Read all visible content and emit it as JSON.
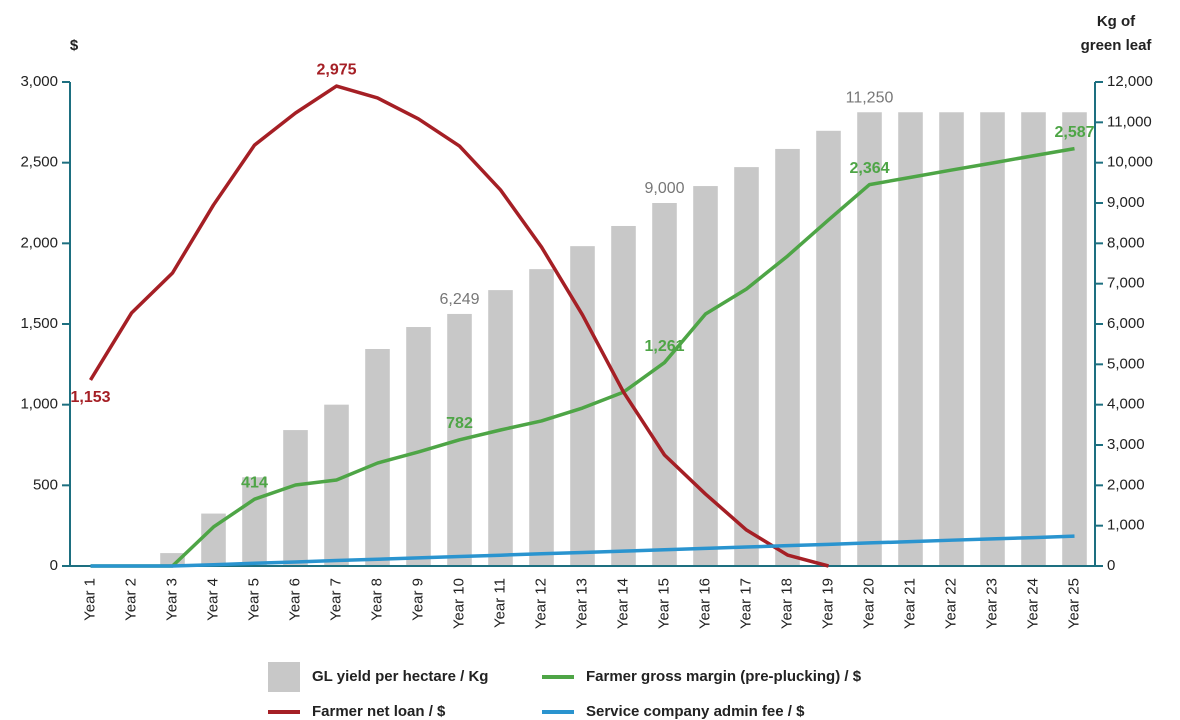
{
  "chart_data": {
    "type": "bar-line",
    "y_label": "$",
    "y2_label": [
      "Kg of",
      "green leaf"
    ],
    "categories": [
      "Year 1",
      "Year 2",
      "Year 3",
      "Year 4",
      "Year 5",
      "Year 6",
      "Year 7",
      "Year 8",
      "Year 9",
      "Year 10",
      "Year 11",
      "Year 12",
      "Year 13",
      "Year 14",
      "Year 15",
      "Year 16",
      "Year 17",
      "Year 18",
      "Year 19",
      "Year 20",
      "Year 21",
      "Year 22",
      "Year 23",
      "Year 24",
      "Year 25"
    ],
    "ylim": [
      0,
      3000
    ],
    "yticks": [
      0,
      500,
      {
        "value": 1000,
        "label": "1,000"
      },
      {
        "value": 1500,
        "label": "1,500"
      },
      {
        "value": 2000,
        "label": "2,000"
      },
      {
        "value": 2500,
        "label": "2,500"
      },
      {
        "value": 3000,
        "label": "3,000"
      }
    ],
    "y2lim": [
      0,
      12000
    ],
    "y2ticks": [
      0,
      {
        "value": 1000,
        "label": "1,000"
      },
      {
        "value": 2000,
        "label": "2,000"
      },
      {
        "value": 3000,
        "label": "3,000"
      },
      {
        "value": 4000,
        "label": "4,000"
      },
      {
        "value": 5000,
        "label": "5,000"
      },
      {
        "value": 6000,
        "label": "6,000"
      },
      {
        "value": 7000,
        "label": "7,000"
      },
      {
        "value": 8000,
        "label": "8,000"
      },
      {
        "value": 9000,
        "label": "9,000"
      },
      {
        "value": 10000,
        "label": "10,000"
      },
      {
        "value": 11000,
        "label": "11,000"
      },
      {
        "value": 12000,
        "label": "12,000"
      }
    ],
    "series": [
      {
        "name": "GL yield per hectare / Kg",
        "type": "bar",
        "axis": "y2",
        "color": "#c8c8c8",
        "values": [
          0,
          0,
          320,
          1300,
          2200,
          3370,
          4000,
          5380,
          5925,
          6249,
          6840,
          7360,
          7930,
          8430,
          9000,
          9420,
          9890,
          10340,
          10790,
          11250,
          11250,
          11250,
          11250,
          11250,
          11250
        ],
        "value_labels": [
          null,
          null,
          null,
          null,
          null,
          null,
          null,
          null,
          null,
          "6,249",
          null,
          null,
          null,
          null,
          "9,000",
          null,
          null,
          null,
          null,
          "11,250",
          null,
          null,
          null,
          null,
          null
        ]
      },
      {
        "name": "Farmer gross margin (pre-plucking) / $",
        "type": "line",
        "color": "#4ea546",
        "values": [
          0,
          0,
          0,
          242,
          414,
          502,
          533,
          638,
          707,
          782,
          843,
          899,
          979,
          1078,
          1261,
          1562,
          1717,
          1921,
          2145,
          2364,
          2409,
          2454,
          2498,
          2543,
          2587
        ],
        "value_labels": [
          null,
          null,
          null,
          null,
          "414",
          null,
          null,
          null,
          null,
          "782",
          null,
          null,
          null,
          null,
          "1,261",
          null,
          null,
          null,
          null,
          "2,364",
          null,
          null,
          null,
          null,
          "2,587"
        ]
      },
      {
        "name": "Farmer net loan / $",
        "type": "line",
        "color": "#a51f25",
        "values": [
          1153,
          1568,
          1816,
          2238,
          2609,
          2808,
          2975,
          2901,
          2771,
          2603,
          2331,
          1977,
          1556,
          1078,
          688,
          446,
          223,
          68,
          0,
          null,
          null,
          null,
          null,
          null,
          null
        ],
        "value_labels": [
          "1,153",
          null,
          null,
          null,
          null,
          null,
          "2,975",
          null,
          null,
          null,
          null,
          null,
          null,
          null,
          null,
          null,
          null,
          null,
          null,
          null,
          null,
          null,
          null,
          null,
          null
        ]
      },
      {
        "name": "Service company admin fee / $",
        "type": "line",
        "color": "#2a94cf",
        "values": [
          0,
          0,
          0,
          8,
          17,
          25,
          34,
          42,
          50,
          59,
          67,
          76,
          84,
          92,
          101,
          109,
          118,
          126,
          134,
          143,
          151,
          160,
          168,
          176,
          185
        ]
      }
    ]
  }
}
